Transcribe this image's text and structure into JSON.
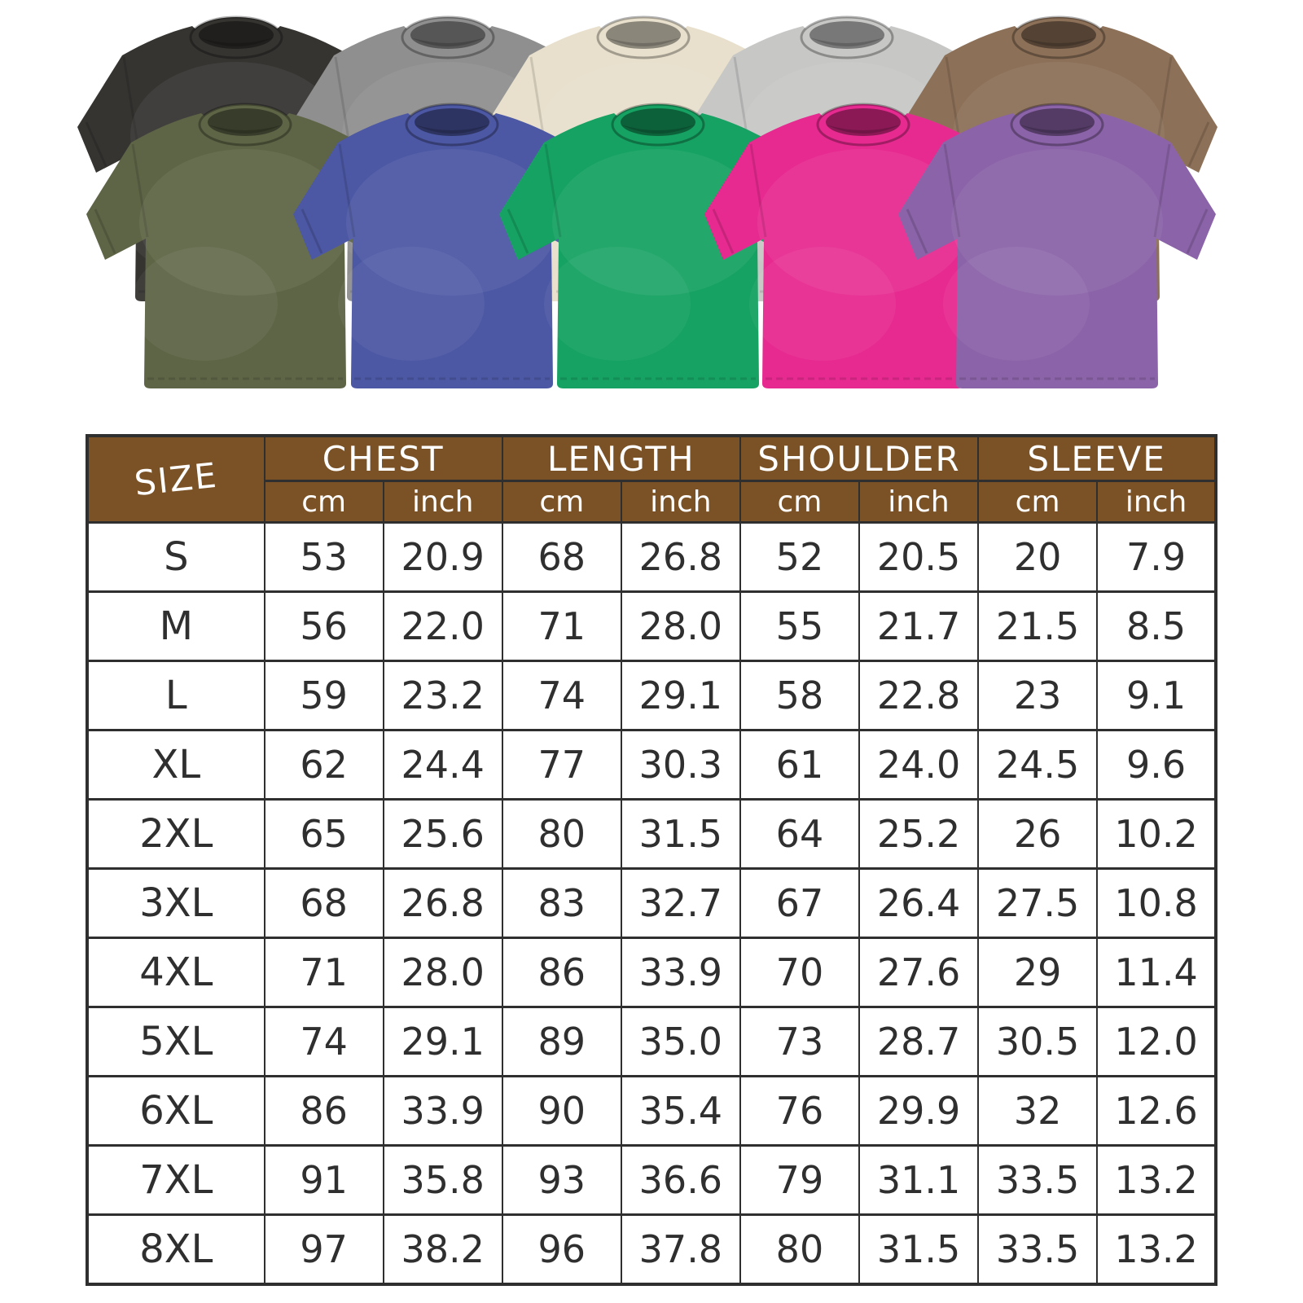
{
  "gallery": {
    "shirts": [
      {
        "name": "washed-black",
        "color": "#363431",
        "row": "back"
      },
      {
        "name": "washed-grey",
        "color": "#8f8f8f",
        "row": "back"
      },
      {
        "name": "washed-cream",
        "color": "#e8e0cc",
        "row": "back"
      },
      {
        "name": "washed-light-grey",
        "color": "#c7c8c6",
        "row": "back"
      },
      {
        "name": "washed-brown",
        "color": "#8d7058",
        "row": "back"
      },
      {
        "name": "washed-army-green",
        "color": "#5e6546",
        "row": "front"
      },
      {
        "name": "washed-blue",
        "color": "#4c58a4",
        "row": "front"
      },
      {
        "name": "washed-green",
        "color": "#16a262",
        "row": "front"
      },
      {
        "name": "washed-rose-pink",
        "color": "#e72a90",
        "row": "front"
      },
      {
        "name": "washed-purple",
        "color": "#8b63a8",
        "row": "front"
      }
    ]
  },
  "size_chart": {
    "corner_label": "SIZE",
    "groups": [
      "CHEST",
      "LENGTH",
      "SHOULDER",
      "SLEEVE"
    ],
    "units": [
      "cm",
      "inch"
    ],
    "style": {
      "header_bg": "#7a5226",
      "header_text": "#ffffff",
      "grid_color": "#2f2f2f",
      "cell_text": "#2f2f2f",
      "cell_bg": "#ffffff"
    },
    "rows": [
      {
        "size": "S",
        "values": [
          "53",
          "20.9",
          "68",
          "26.8",
          "52",
          "20.5",
          "20",
          "7.9"
        ]
      },
      {
        "size": "M",
        "values": [
          "56",
          "22.0",
          "71",
          "28.0",
          "55",
          "21.7",
          "21.5",
          "8.5"
        ]
      },
      {
        "size": "L",
        "values": [
          "59",
          "23.2",
          "74",
          "29.1",
          "58",
          "22.8",
          "23",
          "9.1"
        ]
      },
      {
        "size": "XL",
        "values": [
          "62",
          "24.4",
          "77",
          "30.3",
          "61",
          "24.0",
          "24.5",
          "9.6"
        ]
      },
      {
        "size": "2XL",
        "values": [
          "65",
          "25.6",
          "80",
          "31.5",
          "64",
          "25.2",
          "26",
          "10.2"
        ]
      },
      {
        "size": "3XL",
        "values": [
          "68",
          "26.8",
          "83",
          "32.7",
          "67",
          "26.4",
          "27.5",
          "10.8"
        ]
      },
      {
        "size": "4XL",
        "values": [
          "71",
          "28.0",
          "86",
          "33.9",
          "70",
          "27.6",
          "29",
          "11.4"
        ]
      },
      {
        "size": "5XL",
        "values": [
          "74",
          "29.1",
          "89",
          "35.0",
          "73",
          "28.7",
          "30.5",
          "12.0"
        ]
      },
      {
        "size": "6XL",
        "values": [
          "86",
          "33.9",
          "90",
          "35.4",
          "76",
          "29.9",
          "32",
          "12.6"
        ]
      },
      {
        "size": "7XL",
        "values": [
          "91",
          "35.8",
          "93",
          "36.6",
          "79",
          "31.1",
          "33.5",
          "13.2"
        ]
      },
      {
        "size": "8XL",
        "values": [
          "97",
          "38.2",
          "96",
          "37.8",
          "80",
          "31.5",
          "33.5",
          "13.2"
        ]
      }
    ]
  }
}
